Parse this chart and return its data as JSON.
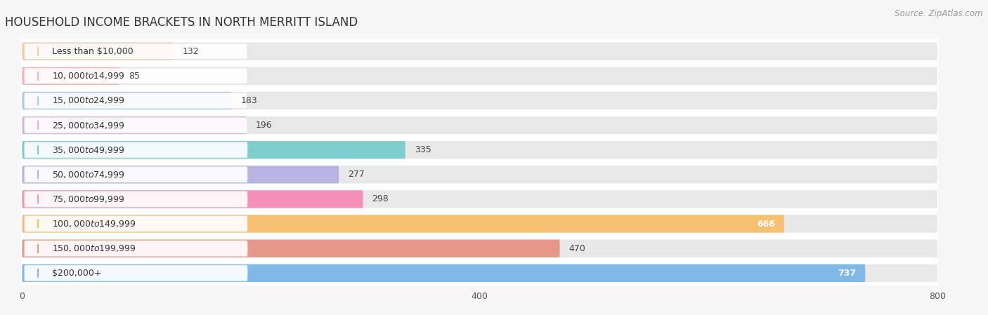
{
  "title": "HOUSEHOLD INCOME BRACKETS IN NORTH MERRITT ISLAND",
  "source": "Source: ZipAtlas.com",
  "categories": [
    "Less than $10,000",
    "$10,000 to $14,999",
    "$15,000 to $24,999",
    "$25,000 to $34,999",
    "$35,000 to $49,999",
    "$50,000 to $74,999",
    "$75,000 to $99,999",
    "$100,000 to $149,999",
    "$150,000 to $199,999",
    "$200,000+"
  ],
  "values": [
    132,
    85,
    183,
    196,
    335,
    277,
    298,
    666,
    470,
    737
  ],
  "bar_colors": [
    "#f7cc9e",
    "#f5b3b0",
    "#b3c8e8",
    "#d4b8d8",
    "#7ecece",
    "#b8b3e0",
    "#f590b8",
    "#f5c070",
    "#e89888",
    "#80b8e8"
  ],
  "xlim_min": -15,
  "xlim_max": 840,
  "xticks": [
    0,
    400,
    800
  ],
  "bg_color": "#f7f7f7",
  "bar_bg_color": "#e8e8e8",
  "white_gap_color": "#ffffff",
  "title_fontsize": 12,
  "label_fontsize": 9,
  "value_fontsize": 9,
  "source_fontsize": 8.5,
  "value_inside_threshold": 500
}
